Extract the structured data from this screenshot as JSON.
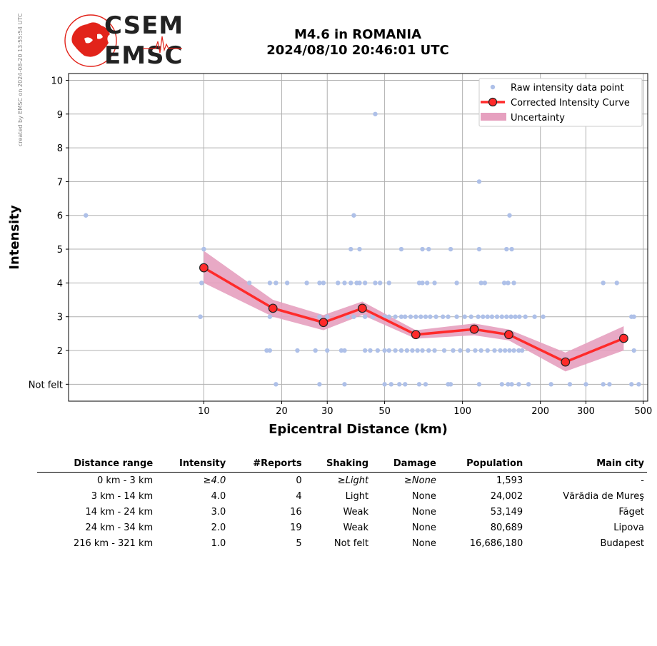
{
  "side_note": "created by EMSC on 2024-08-20 13:55:54 UTC",
  "logo": {
    "line1": "CSEM",
    "line2": "EMSC",
    "accent": "#e2231a"
  },
  "title": {
    "line1": "M4.6 in ROMANIA",
    "line2": "2024/08/10 20:46:01 UTC"
  },
  "chart_data": {
    "type": "scatter",
    "xlabel": "Epicentral Distance (km)",
    "ylabel": "Intensity",
    "x_scale": "log",
    "xlim": [
      3.0,
      520
    ],
    "ylim": [
      0.5,
      10.2
    ],
    "x_ticks": [
      10,
      20,
      30,
      50,
      100,
      200,
      300,
      500
    ],
    "x_tick_labels": [
      "10",
      "20",
      "30",
      "50",
      "100",
      "200",
      "300",
      "500"
    ],
    "y_ticks": [
      1,
      2,
      3,
      4,
      5,
      6,
      7,
      8,
      9,
      10
    ],
    "y_tick_labels": [
      "Not felt",
      "2",
      "3",
      "4",
      "5",
      "6",
      "7",
      "8",
      "9",
      "10"
    ],
    "grid": true,
    "legend_position": "top-right",
    "legend": [
      "Raw intensity data point",
      "Corrected Intensity Curve",
      "Uncertainty"
    ],
    "colors": {
      "raw": "#aec0e8",
      "curve": "#ff2a2a",
      "marker_edge": "#222222",
      "uncertainty": "#e6a0bf"
    },
    "raw_points": [
      [
        3.5,
        6
      ],
      [
        9.8,
        4
      ],
      [
        10,
        5
      ],
      [
        9.7,
        3
      ],
      [
        15,
        4
      ],
      [
        18,
        4
      ],
      [
        19,
        4
      ],
      [
        21,
        4
      ],
      [
        25,
        4
      ],
      [
        28,
        4
      ],
      [
        29,
        4
      ],
      [
        33,
        4
      ],
      [
        35,
        4
      ],
      [
        37,
        4
      ],
      [
        39,
        4
      ],
      [
        40,
        4
      ],
      [
        42,
        4
      ],
      [
        46,
        4
      ],
      [
        48,
        4
      ],
      [
        52,
        4
      ],
      [
        68,
        4
      ],
      [
        70,
        4
      ],
      [
        73,
        4
      ],
      [
        78,
        4
      ],
      [
        95,
        4
      ],
      [
        118,
        4
      ],
      [
        122,
        4
      ],
      [
        145,
        4
      ],
      [
        150,
        4
      ],
      [
        158,
        4
      ],
      [
        350,
        4
      ],
      [
        395,
        4
      ],
      [
        10,
        5
      ],
      [
        37,
        5
      ],
      [
        40,
        5
      ],
      [
        58,
        5
      ],
      [
        70,
        5
      ],
      [
        74,
        5
      ],
      [
        90,
        5
      ],
      [
        116,
        5
      ],
      [
        148,
        5
      ],
      [
        155,
        5
      ],
      [
        9.7,
        3
      ],
      [
        18,
        3
      ],
      [
        28,
        3
      ],
      [
        30,
        3
      ],
      [
        36,
        3
      ],
      [
        38,
        3
      ],
      [
        42,
        3
      ],
      [
        45,
        3
      ],
      [
        50,
        3
      ],
      [
        52,
        3
      ],
      [
        55,
        3
      ],
      [
        58,
        3
      ],
      [
        60,
        3
      ],
      [
        63,
        3
      ],
      [
        66,
        3
      ],
      [
        69,
        3
      ],
      [
        72,
        3
      ],
      [
        75,
        3
      ],
      [
        79,
        3
      ],
      [
        84,
        3
      ],
      [
        88,
        3
      ],
      [
        95,
        3
      ],
      [
        102,
        3
      ],
      [
        108,
        3
      ],
      [
        115,
        3
      ],
      [
        120,
        3
      ],
      [
        125,
        3
      ],
      [
        130,
        3
      ],
      [
        136,
        3
      ],
      [
        142,
        3
      ],
      [
        148,
        3
      ],
      [
        154,
        3
      ],
      [
        160,
        3
      ],
      [
        166,
        3
      ],
      [
        175,
        3
      ],
      [
        190,
        3
      ],
      [
        205,
        3
      ],
      [
        450,
        3
      ],
      [
        460,
        3
      ],
      [
        17.5,
        2
      ],
      [
        18,
        2
      ],
      [
        23,
        2
      ],
      [
        27,
        2
      ],
      [
        30,
        2
      ],
      [
        34,
        2
      ],
      [
        35,
        2
      ],
      [
        42,
        2
      ],
      [
        44,
        2
      ],
      [
        47,
        2
      ],
      [
        50,
        2
      ],
      [
        52,
        2
      ],
      [
        55,
        2
      ],
      [
        58,
        2
      ],
      [
        61,
        2
      ],
      [
        64,
        2
      ],
      [
        67,
        2
      ],
      [
        70,
        2
      ],
      [
        74,
        2
      ],
      [
        78,
        2
      ],
      [
        85,
        2
      ],
      [
        92,
        2
      ],
      [
        98,
        2
      ],
      [
        105,
        2
      ],
      [
        112,
        2
      ],
      [
        118,
        2
      ],
      [
        125,
        2
      ],
      [
        133,
        2
      ],
      [
        140,
        2
      ],
      [
        146,
        2
      ],
      [
        152,
        2
      ],
      [
        158,
        2
      ],
      [
        165,
        2
      ],
      [
        170,
        2
      ],
      [
        460,
        2
      ],
      [
        19,
        1
      ],
      [
        28,
        1
      ],
      [
        35,
        1
      ],
      [
        50,
        1
      ],
      [
        53,
        1
      ],
      [
        57,
        1
      ],
      [
        60,
        1
      ],
      [
        68,
        1
      ],
      [
        72,
        1
      ],
      [
        88,
        1
      ],
      [
        90,
        1
      ],
      [
        116,
        1
      ],
      [
        142,
        1
      ],
      [
        150,
        1
      ],
      [
        155,
        1
      ],
      [
        165,
        1
      ],
      [
        180,
        1
      ],
      [
        220,
        1
      ],
      [
        260,
        1
      ],
      [
        300,
        1
      ],
      [
        350,
        1
      ],
      [
        370,
        1
      ],
      [
        450,
        1
      ],
      [
        480,
        1
      ],
      [
        38,
        6
      ],
      [
        152,
        6
      ],
      [
        116,
        7
      ],
      [
        46,
        9
      ]
    ],
    "curve": [
      {
        "x": 10,
        "y": 4.45
      },
      {
        "x": 18.5,
        "y": 3.25
      },
      {
        "x": 29,
        "y": 2.83
      },
      {
        "x": 41,
        "y": 3.25
      },
      {
        "x": 66,
        "y": 2.47
      },
      {
        "x": 111,
        "y": 2.63
      },
      {
        "x": 151,
        "y": 2.47
      },
      {
        "x": 250,
        "y": 1.66
      },
      {
        "x": 420,
        "y": 2.36
      }
    ],
    "uncertainty": [
      {
        "x": 10,
        "lo": 4.0,
        "hi": 4.95
      },
      {
        "x": 18.5,
        "lo": 3.0,
        "hi": 3.5
      },
      {
        "x": 29,
        "lo": 2.6,
        "hi": 3.05
      },
      {
        "x": 41,
        "lo": 3.05,
        "hi": 3.45
      },
      {
        "x": 66,
        "lo": 2.35,
        "hi": 2.6
      },
      {
        "x": 111,
        "lo": 2.45,
        "hi": 2.8
      },
      {
        "x": 151,
        "lo": 2.3,
        "hi": 2.62
      },
      {
        "x": 250,
        "lo": 1.38,
        "hi": 1.94
      },
      {
        "x": 420,
        "lo": 2.0,
        "hi": 2.72
      }
    ]
  },
  "table": {
    "headers": [
      "Distance range",
      "Intensity",
      "#Reports",
      "Shaking",
      "Damage",
      "Population",
      "Main city"
    ],
    "rows": [
      {
        "range": "0 km -    3 km",
        "intensity": "≥4.0",
        "reports": "0",
        "shaking": "≥Light",
        "damage": "≥None",
        "population": "1,593",
        "city": "-",
        "italic": true
      },
      {
        "range": "3 km -   14 km",
        "intensity": "4.0",
        "reports": "4",
        "shaking": "Light",
        "damage": "None",
        "population": "24,002",
        "city": "Vărădia de Mureş",
        "italic": false
      },
      {
        "range": "14 km -   24 km",
        "intensity": "3.0",
        "reports": "16",
        "shaking": "Weak",
        "damage": "None",
        "population": "53,149",
        "city": "Făget",
        "italic": false
      },
      {
        "range": "24 km -   34 km",
        "intensity": "2.0",
        "reports": "19",
        "shaking": "Weak",
        "damage": "None",
        "population": "80,689",
        "city": "Lipova",
        "italic": false
      },
      {
        "range": "216 km -  321 km",
        "intensity": "1.0",
        "reports": "5",
        "shaking": "Not felt",
        "damage": "None",
        "population": "16,686,180",
        "city": "Budapest",
        "italic": false
      }
    ]
  }
}
